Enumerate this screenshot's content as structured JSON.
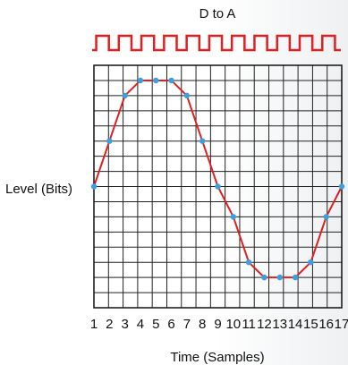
{
  "chart_data": {
    "type": "line",
    "title": "D to A",
    "xlabel": "Time (Samples)",
    "ylabel": "Level (Bits)",
    "x": [
      1,
      2,
      3,
      4,
      5,
      6,
      7,
      8,
      9,
      10,
      11,
      12,
      13,
      14,
      15,
      16,
      17
    ],
    "y": [
      8,
      11,
      14,
      15,
      15,
      15,
      14,
      11,
      8,
      6,
      3,
      2,
      2,
      2,
      3,
      6,
      8
    ],
    "xlim": [
      1,
      17
    ],
    "ylim": [
      0,
      16
    ],
    "grid": true,
    "series_color": "#e02020",
    "marker_color": "#3aa0e0",
    "clock_color": "#e02020",
    "clock_pulses": 11
  }
}
